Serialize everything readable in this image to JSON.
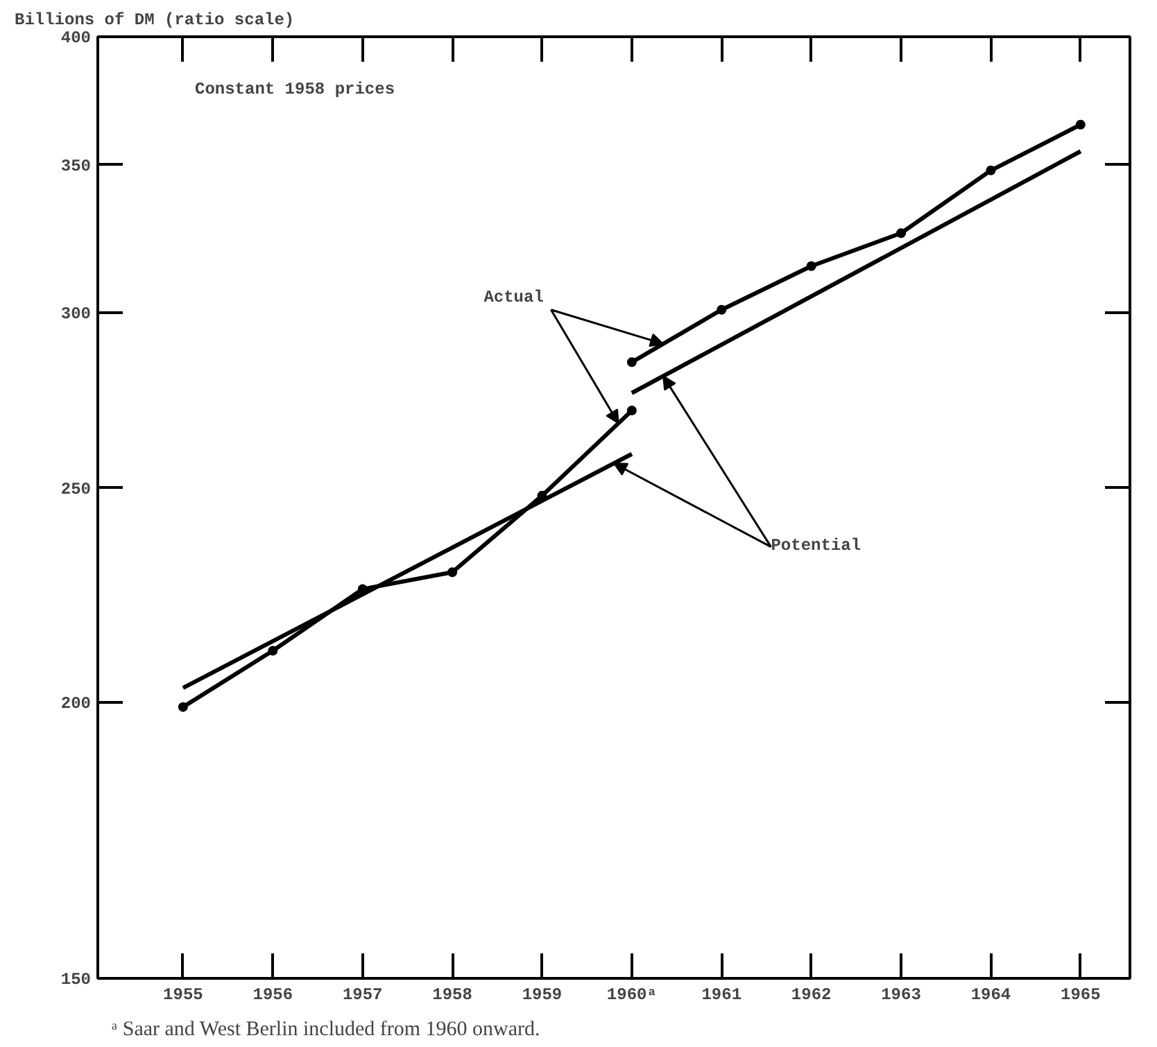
{
  "chart_data": {
    "type": "line",
    "ylabel": "Billions of DM (ratio scale)",
    "annotations": [
      "Constant 1958 prices",
      "ᵃ Saar and West Berlin included from 1960 onward."
    ],
    "series": [
      {
        "name": "Actual",
        "color": "#000000",
        "marker": "circle",
        "x": [
          1955,
          1956,
          1957,
          1958,
          1959,
          1960
        ],
        "values": [
          199,
          211,
          225,
          229,
          248,
          271
        ]
      },
      {
        "color": "#000000",
        "marker": "circle",
        "x": [
          1960,
          1961,
          1962,
          1963,
          1964,
          1965
        ],
        "values": [
          285,
          301,
          315,
          326,
          348,
          365
        ]
      },
      {
        "name": "Potential",
        "color": "#000000",
        "marker": "none",
        "x": [
          1955,
          1960
        ],
        "values": [
          203,
          259
        ]
      },
      {
        "color": "#000000",
        "marker": "none",
        "x": [
          1960,
          1965
        ],
        "values": [
          276,
          355
        ]
      }
    ],
    "log": "y",
    "xlim": [
      1954.05,
      1965.55
    ],
    "ylim": [
      150,
      400
    ],
    "xticks": [
      1955,
      1956,
      1957,
      1958,
      1959,
      {
        "value": 1960,
        "label": "1960ᵃ"
      },
      1961,
      1962,
      1963,
      1964,
      1965
    ],
    "yticks": [
      150,
      200,
      250,
      300,
      350,
      400
    ],
    "tick_labels": "xy",
    "grid": false,
    "legend": false,
    "line_style": "solid"
  }
}
